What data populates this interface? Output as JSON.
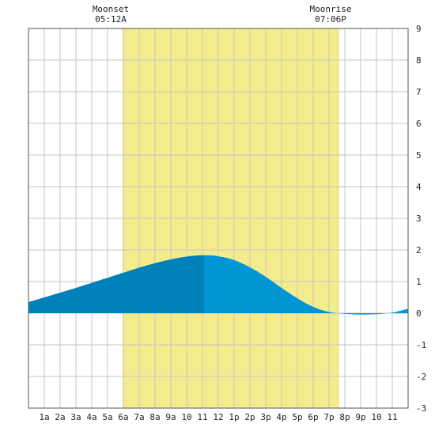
{
  "chart_data": {
    "type": "area",
    "title": "",
    "xlabel": "",
    "ylabel": "",
    "xlim": [
      0,
      24
    ],
    "ylim": [
      -3,
      9
    ],
    "grid": true,
    "x_ticks": [
      {
        "x": 1,
        "label": "1a"
      },
      {
        "x": 2,
        "label": "2a"
      },
      {
        "x": 3,
        "label": "3a"
      },
      {
        "x": 4,
        "label": "4a"
      },
      {
        "x": 5,
        "label": "5a"
      },
      {
        "x": 6,
        "label": "6a"
      },
      {
        "x": 7,
        "label": "7a"
      },
      {
        "x": 8,
        "label": "8a"
      },
      {
        "x": 9,
        "label": "9a"
      },
      {
        "x": 10,
        "label": "10"
      },
      {
        "x": 11,
        "label": "11"
      },
      {
        "x": 12,
        "label": "12"
      },
      {
        "x": 13,
        "label": "1p"
      },
      {
        "x": 14,
        "label": "2p"
      },
      {
        "x": 15,
        "label": "3p"
      },
      {
        "x": 16,
        "label": "4p"
      },
      {
        "x": 17,
        "label": "5p"
      },
      {
        "x": 18,
        "label": "6p"
      },
      {
        "x": 19,
        "label": "7p"
      },
      {
        "x": 20,
        "label": "8p"
      },
      {
        "x": 21,
        "label": "9p"
      },
      {
        "x": 22,
        "label": "10"
      },
      {
        "x": 23,
        "label": "11"
      }
    ],
    "y_ticks": [
      -3,
      -2,
      -1,
      0,
      1,
      2,
      3,
      4,
      5,
      6,
      7,
      8,
      9
    ],
    "daylight": {
      "start": 5.95,
      "end": 19.65
    },
    "moon_events": [
      {
        "name": "Moonset",
        "time": "05:12A",
        "x": 5.2
      },
      {
        "name": "Moonrise",
        "time": "07:06P",
        "x": 19.1
      }
    ],
    "tide_rising_until": 11.1,
    "series": [
      {
        "x": [
          0,
          1,
          2,
          3,
          4,
          5,
          6,
          7,
          8,
          9,
          10,
          11,
          11.5,
          12,
          13,
          14,
          15,
          16,
          17,
          18,
          19,
          20,
          21,
          22,
          23,
          24
        ],
        "values": [
          0.35,
          0.5,
          0.65,
          0.8,
          0.96,
          1.12,
          1.28,
          1.44,
          1.58,
          1.7,
          1.79,
          1.83,
          1.83,
          1.8,
          1.68,
          1.45,
          1.15,
          0.8,
          0.47,
          0.2,
          0.04,
          -0.02,
          -0.04,
          -0.03,
          0.02,
          0.14
        ]
      }
    ],
    "colors": {
      "daylight": "#f4ec8c",
      "tide_rising": "#0080b8",
      "tide_falling": "#0095d5",
      "grid": "#c4c4c4",
      "frame": "#555555"
    }
  }
}
